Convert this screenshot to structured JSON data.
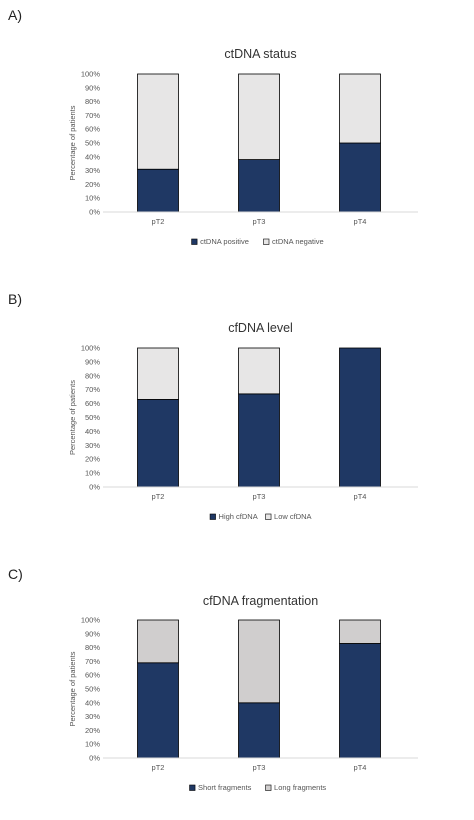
{
  "chart_data": [
    {
      "type": "bar",
      "stacked": true,
      "panel": "A)",
      "title": "ctDNA status",
      "ylabel": "Percentage of patients",
      "ylim": [
        0,
        100
      ],
      "yticks": [
        "0%",
        "10%",
        "20%",
        "30%",
        "40%",
        "50%",
        "60%",
        "70%",
        "80%",
        "90%",
        "100%"
      ],
      "categories": [
        "pT2",
        "pT3",
        "pT4"
      ],
      "legend_position": "bottom",
      "series": [
        {
          "name": "ctDNA positive",
          "values": [
            31,
            38,
            50
          ],
          "color": "#1f3864"
        },
        {
          "name": "ctDNA negative",
          "values": [
            69,
            62,
            50
          ],
          "color": "#e7e6e6"
        }
      ]
    },
    {
      "type": "bar",
      "stacked": true,
      "panel": "B)",
      "title": "cfDNA level",
      "ylabel": "Percentage of patients",
      "ylim": [
        0,
        100
      ],
      "yticks": [
        "0%",
        "10%",
        "20%",
        "30%",
        "40%",
        "50%",
        "60%",
        "70%",
        "80%",
        "90%",
        "100%"
      ],
      "categories": [
        "pT2",
        "pT3",
        "pT4"
      ],
      "legend_position": "bottom",
      "series": [
        {
          "name": "High cfDNA",
          "values": [
            63,
            67,
            100
          ],
          "color": "#1f3864"
        },
        {
          "name": "Low cfDNA",
          "values": [
            37,
            33,
            0
          ],
          "color": "#e7e6e6"
        }
      ]
    },
    {
      "type": "bar",
      "stacked": true,
      "panel": "C)",
      "title": "cfDNA fragmentation",
      "ylabel": "Percentage of patients",
      "ylim": [
        0,
        100
      ],
      "yticks": [
        "0%",
        "10%",
        "20%",
        "30%",
        "40%",
        "50%",
        "60%",
        "70%",
        "80%",
        "90%",
        "100%"
      ],
      "categories": [
        "pT2",
        "pT3",
        "pT4"
      ],
      "legend_position": "bottom",
      "series": [
        {
          "name": "Short fragments",
          "values": [
            69,
            40,
            83
          ],
          "color": "#1f3864"
        },
        {
          "name": "Long fragments",
          "values": [
            31,
            60,
            17
          ],
          "color": "#d0cece"
        }
      ]
    }
  ]
}
